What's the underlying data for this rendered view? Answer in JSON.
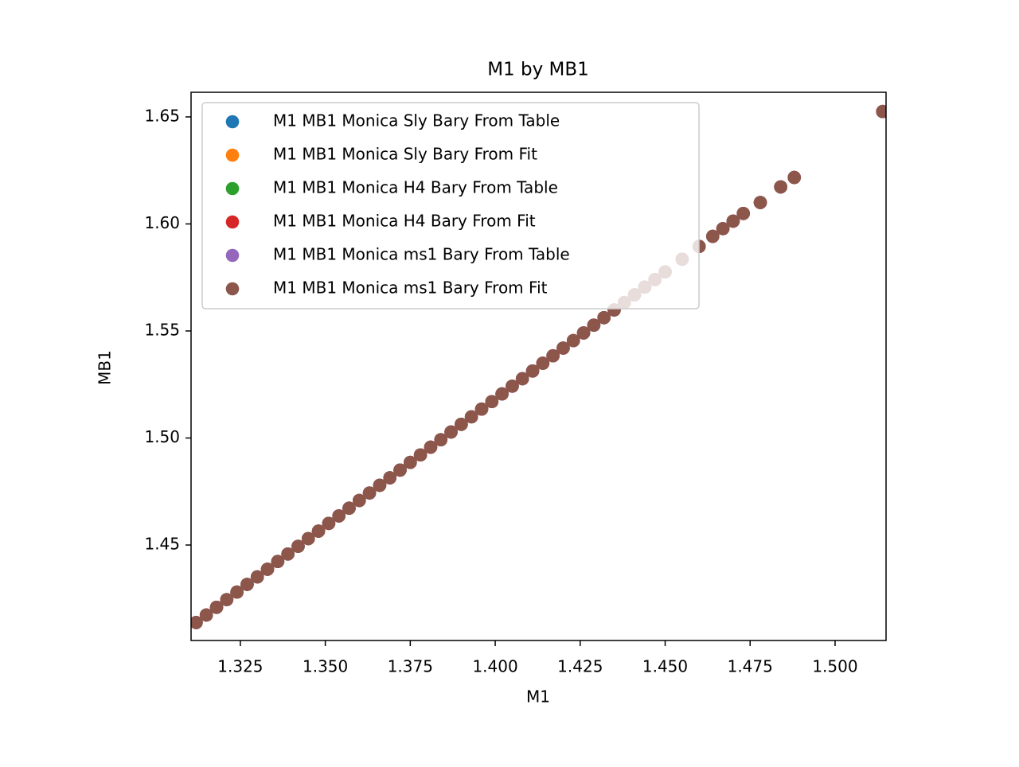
{
  "chart_data": {
    "type": "scatter",
    "title": "M1 by MB1",
    "xlabel": "M1",
    "ylabel": "MB1",
    "x": [
      1.312,
      1.315,
      1.318,
      1.321,
      1.324,
      1.327,
      1.33,
      1.333,
      1.336,
      1.339,
      1.342,
      1.345,
      1.348,
      1.351,
      1.354,
      1.357,
      1.36,
      1.363,
      1.366,
      1.369,
      1.372,
      1.375,
      1.378,
      1.381,
      1.384,
      1.387,
      1.39,
      1.393,
      1.396,
      1.399,
      1.402,
      1.405,
      1.408,
      1.411,
      1.414,
      1.417,
      1.42,
      1.423,
      1.426,
      1.429,
      1.432,
      1.435,
      1.438,
      1.441,
      1.444,
      1.447,
      1.45,
      1.455,
      1.46,
      1.464,
      1.467,
      1.47,
      1.473,
      1.478,
      1.484,
      1.488,
      1.514
    ],
    "series": [
      {
        "name": "M1 MB1 Monica Sly Bary From Table",
        "color": "#1f77b4",
        "values": [
          1.4138,
          1.4173,
          1.4209,
          1.4245,
          1.428,
          1.4316,
          1.4351,
          1.4387,
          1.4423,
          1.4458,
          1.4494,
          1.453,
          1.4565,
          1.4601,
          1.4636,
          1.4672,
          1.4708,
          1.4743,
          1.4779,
          1.4814,
          1.485,
          1.4886,
          1.4921,
          1.4957,
          1.4992,
          1.5028,
          1.5064,
          1.5099,
          1.5135,
          1.517,
          1.5206,
          1.5242,
          1.5277,
          1.5313,
          1.5349,
          1.5384,
          1.542,
          1.5455,
          1.5491,
          1.5527,
          1.5562,
          1.5598,
          1.5633,
          1.5669,
          1.5705,
          1.574,
          1.5776,
          1.5835,
          1.5895,
          1.5942,
          1.5978,
          1.6013,
          1.6049,
          1.61,
          1.6173,
          1.6217,
          1.6525
        ]
      },
      {
        "name": "M1 MB1 Monica Sly Bary From Fit",
        "color": "#ff7f0e",
        "values": [
          1.4138,
          1.4173,
          1.4209,
          1.4245,
          1.428,
          1.4316,
          1.4351,
          1.4387,
          1.4423,
          1.4458,
          1.4494,
          1.453,
          1.4565,
          1.4601,
          1.4636,
          1.4672,
          1.4708,
          1.4743,
          1.4779,
          1.4814,
          1.485,
          1.4886,
          1.4921,
          1.4957,
          1.4992,
          1.5028,
          1.5064,
          1.5099,
          1.5135,
          1.517,
          1.5206,
          1.5242,
          1.5277,
          1.5313,
          1.5349,
          1.5384,
          1.542,
          1.5455,
          1.5491,
          1.5527,
          1.5562,
          1.5598,
          1.5633,
          1.5669,
          1.5705,
          1.574,
          1.5776,
          1.5835,
          1.5895,
          1.5942,
          1.5978,
          1.6013,
          1.6049,
          1.61,
          1.6173,
          1.6217,
          1.6525
        ]
      },
      {
        "name": "M1 MB1 Monica H4 Bary From Table",
        "color": "#2ca02c",
        "values": [
          1.4138,
          1.4173,
          1.4209,
          1.4245,
          1.428,
          1.4316,
          1.4351,
          1.4387,
          1.4423,
          1.4458,
          1.4494,
          1.453,
          1.4565,
          1.4601,
          1.4636,
          1.4672,
          1.4708,
          1.4743,
          1.4779,
          1.4814,
          1.485,
          1.4886,
          1.4921,
          1.4957,
          1.4992,
          1.5028,
          1.5064,
          1.5099,
          1.5135,
          1.517,
          1.5206,
          1.5242,
          1.5277,
          1.5313,
          1.5349,
          1.5384,
          1.542,
          1.5455,
          1.5491,
          1.5527,
          1.5562,
          1.5598,
          1.5633,
          1.5669,
          1.5705,
          1.574,
          1.5776,
          1.5835,
          1.5895,
          1.5942,
          1.5978,
          1.6013,
          1.6049,
          1.61,
          1.6173,
          1.6217,
          1.6525
        ]
      },
      {
        "name": "M1 MB1 Monica H4 Bary From Fit",
        "color": "#d62728",
        "values": [
          1.4138,
          1.4173,
          1.4209,
          1.4245,
          1.428,
          1.4316,
          1.4351,
          1.4387,
          1.4423,
          1.4458,
          1.4494,
          1.453,
          1.4565,
          1.4601,
          1.4636,
          1.4672,
          1.4708,
          1.4743,
          1.4779,
          1.4814,
          1.485,
          1.4886,
          1.4921,
          1.4957,
          1.4992,
          1.5028,
          1.5064,
          1.5099,
          1.5135,
          1.517,
          1.5206,
          1.5242,
          1.5277,
          1.5313,
          1.5349,
          1.5384,
          1.542,
          1.5455,
          1.5491,
          1.5527,
          1.5562,
          1.5598,
          1.5633,
          1.5669,
          1.5705,
          1.574,
          1.5776,
          1.5835,
          1.5895,
          1.5942,
          1.5978,
          1.6013,
          1.6049,
          1.61,
          1.6173,
          1.6217,
          1.6525
        ]
      },
      {
        "name": "M1 MB1 Monica ms1 Bary From Table",
        "color": "#9467bd",
        "values": [
          1.4138,
          1.4173,
          1.4209,
          1.4245,
          1.428,
          1.4316,
          1.4351,
          1.4387,
          1.4423,
          1.4458,
          1.4494,
          1.453,
          1.4565,
          1.4601,
          1.4636,
          1.4672,
          1.4708,
          1.4743,
          1.4779,
          1.4814,
          1.485,
          1.4886,
          1.4921,
          1.4957,
          1.4992,
          1.5028,
          1.5064,
          1.5099,
          1.5135,
          1.517,
          1.5206,
          1.5242,
          1.5277,
          1.5313,
          1.5349,
          1.5384,
          1.542,
          1.5455,
          1.5491,
          1.5527,
          1.5562,
          1.5598,
          1.5633,
          1.5669,
          1.5705,
          1.574,
          1.5776,
          1.5835,
          1.5895,
          1.5942,
          1.5978,
          1.6013,
          1.6049,
          1.61,
          1.6173,
          1.6217,
          1.6525
        ]
      },
      {
        "name": "M1 MB1 Monica ms1 Bary From Fit",
        "color": "#8c564b",
        "values": [
          1.4138,
          1.4173,
          1.4209,
          1.4245,
          1.428,
          1.4316,
          1.4351,
          1.4387,
          1.4423,
          1.4458,
          1.4494,
          1.453,
          1.4565,
          1.4601,
          1.4636,
          1.4672,
          1.4708,
          1.4743,
          1.4779,
          1.4814,
          1.485,
          1.4886,
          1.4921,
          1.4957,
          1.4992,
          1.5028,
          1.5064,
          1.5099,
          1.5135,
          1.517,
          1.5206,
          1.5242,
          1.5277,
          1.5313,
          1.5349,
          1.5384,
          1.542,
          1.5455,
          1.5491,
          1.5527,
          1.5562,
          1.5598,
          1.5633,
          1.5669,
          1.5705,
          1.574,
          1.5776,
          1.5835,
          1.5895,
          1.5942,
          1.5978,
          1.6013,
          1.6049,
          1.61,
          1.6173,
          1.6217,
          1.6525
        ]
      }
    ],
    "xlim": [
      1.3105,
      1.515
    ],
    "xticks": [
      1.325,
      {
        "value": 1.35,
        "label": "1.350"
      },
      1.375,
      {
        "value": 1.4,
        "label": "1.400"
      },
      1.425,
      {
        "value": 1.45,
        "label": "1.450"
      },
      1.475,
      {
        "value": 1.5,
        "label": "1.500"
      }
    ],
    "ylim": [
      1.4054,
      1.6615
    ],
    "yticks": [
      1.45,
      {
        "value": 1.5,
        "label": "1.50"
      },
      1.55,
      {
        "value": 1.6,
        "label": "1.60"
      },
      1.65
    ],
    "grid": false,
    "legend": "upper left"
  }
}
